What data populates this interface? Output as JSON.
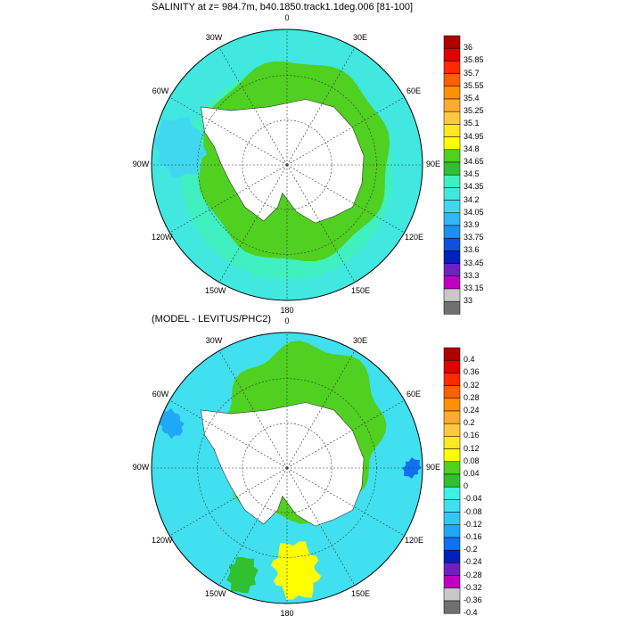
{
  "panels": [
    {
      "title": "SALINITY at z= 984.7m, b40.1850.track1.1deg.006 [81-100]",
      "lon_labels": [
        "0",
        "30E",
        "60E",
        "90E",
        "120E",
        "150E",
        "180",
        "150W",
        "120W",
        "90W",
        "60W",
        "30W"
      ],
      "colorbar": {
        "labels": [
          "36",
          "35.85",
          "35.7",
          "35.55",
          "35.4",
          "35.25",
          "35.1",
          "34.95",
          "34.8",
          "34.65",
          "34.5",
          "34.35",
          "34.2",
          "34.05",
          "33.9",
          "33.75",
          "33.6",
          "33.45",
          "33.3",
          "33.15",
          "33"
        ],
        "colors": [
          "#b00000",
          "#e00000",
          "#ff2a00",
          "#ff6000",
          "#ff9000",
          "#ffaa30",
          "#ffc840",
          "#ffe820",
          "#ffff00",
          "#50d020",
          "#30c030",
          "#40f0c0",
          "#40e8e0",
          "#40d8f0",
          "#30b8f8",
          "#2090f0",
          "#1050e0",
          "#0020c0",
          "#7020c0",
          "#c000c0",
          "#c8c8c8",
          "#707070"
        ]
      }
    },
    {
      "title": "(MODEL - LEVITUS/PHC2)",
      "lon_labels": [
        "0",
        "30E",
        "60E",
        "90E",
        "120E",
        "150E",
        "180",
        "150W",
        "120W",
        "90W",
        "60W",
        "30W"
      ],
      "colorbar": {
        "labels": [
          "0.4",
          "0.36",
          "0.32",
          "0.28",
          "0.24",
          "0.2",
          "0.16",
          "0.12",
          "0.08",
          "0.04",
          "0",
          "-0.04",
          "-0.08",
          "-0.12",
          "-0.16",
          "-0.2",
          "-0.24",
          "-0.28",
          "-0.32",
          "-0.36",
          "-0.4"
        ],
        "colors": [
          "#b00000",
          "#e00000",
          "#ff2a00",
          "#ff6000",
          "#ff9000",
          "#ffaa30",
          "#ffc840",
          "#ffe820",
          "#ffff00",
          "#50d020",
          "#30c030",
          "#40f0e0",
          "#40e0f0",
          "#30c8f8",
          "#20a8f8",
          "#1070f0",
          "#0020c0",
          "#7020c0",
          "#c000c0",
          "#c8c8c8",
          "#707070"
        ]
      }
    }
  ]
}
